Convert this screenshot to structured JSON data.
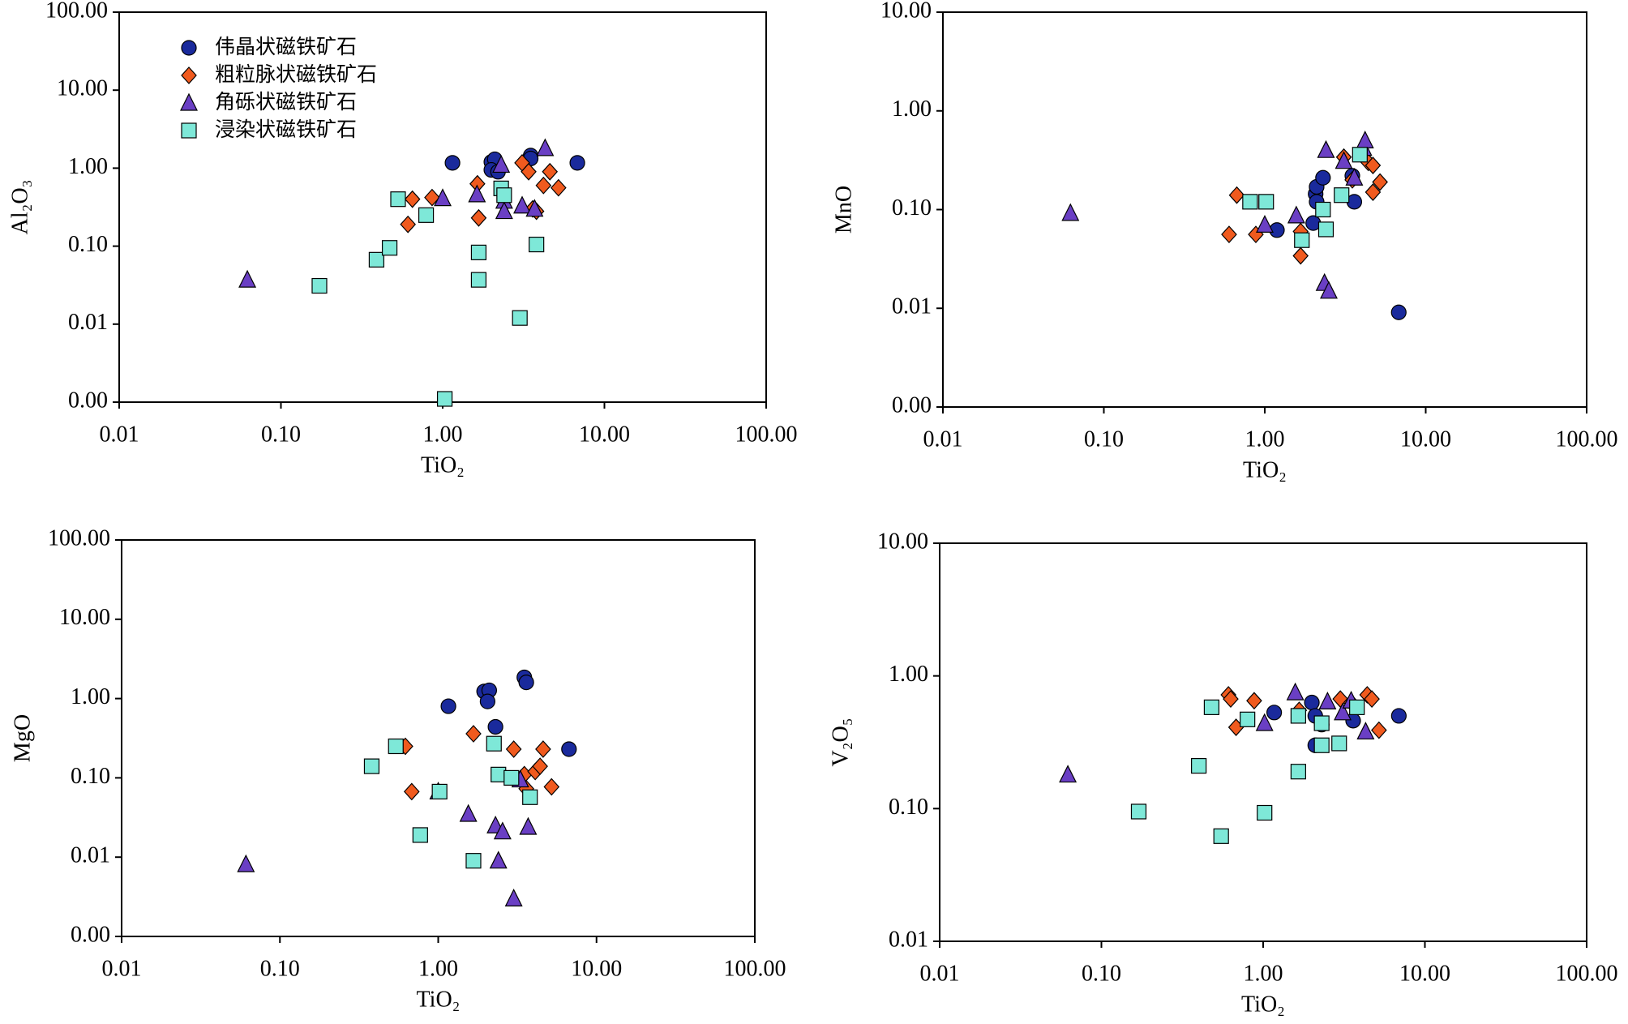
{
  "chart_data": [
    {
      "type": "scatter",
      "xlabel": "TiO₂",
      "ylabel": "Al₂O₃",
      "log_x": true,
      "log_y": true,
      "legend": "upper left",
      "xlim": [
        0.01,
        100
      ],
      "xticks": [
        0.01,
        {
          "value": 0.1,
          "label": "0.10"
        },
        {
          "value": 1,
          "label": "1.00"
        },
        {
          "value": 10,
          "label": "10.00"
        },
        {
          "value": 100,
          "label": "100.00"
        }
      ],
      "ylim": [
        0.001,
        100
      ],
      "yticks": [
        {
          "value": 0.001,
          "label": "0.00"
        },
        0.01,
        {
          "value": 0.1,
          "label": "0.10"
        },
        {
          "value": 1,
          "label": "1.00"
        },
        {
          "value": 10,
          "label": "10.00"
        },
        {
          "value": 100,
          "label": "100.00"
        }
      ],
      "series": [
        {
          "name": "伟晶状磁铁矿石",
          "marker": "circle",
          "color": "#1a2a9c",
          "x": [
            1.15,
            2.0,
            2.1,
            2.0,
            2.2,
            3.5,
            3.5,
            6.8
          ],
          "values": [
            1.17,
            1.2,
            1.3,
            0.95,
            0.9,
            1.45,
            1.33,
            1.17
          ]
        },
        {
          "name": "粗粒脉状磁铁矿石",
          "marker": "diamond",
          "color": "#f05a1e",
          "x": [
            0.61,
            0.65,
            0.86,
            1.64,
            1.67,
            3.1,
            3.4,
            3.6,
            4.2,
            4.6,
            5.2,
            3.8
          ],
          "values": [
            0.19,
            0.4,
            0.42,
            0.63,
            0.23,
            1.17,
            0.9,
            0.3,
            0.6,
            0.9,
            0.56,
            0.28
          ]
        },
        {
          "name": "角砾状磁铁矿石",
          "marker": "triangle",
          "color": "#6a3fc4",
          "x": [
            0.062,
            1.0,
            1.63,
            2.3,
            2.4,
            2.4,
            3.1,
            3.7,
            4.3
          ],
          "values": [
            0.037,
            0.41,
            0.46,
            1.1,
            0.38,
            0.28,
            0.33,
            0.3,
            1.8
          ]
        },
        {
          "name": "浸染状磁铁矿石",
          "marker": "square",
          "color": "#7ee8d8",
          "x": [
            0.173,
            0.39,
            0.47,
            0.53,
            0.79,
            1.03,
            1.67,
            1.67,
            2.3,
            2.4,
            3.0,
            3.8
          ],
          "values": [
            0.031,
            0.067,
            0.095,
            0.4,
            0.25,
            0.0011,
            0.083,
            0.037,
            0.55,
            0.45,
            0.012,
            0.105
          ]
        }
      ]
    },
    {
      "type": "scatter",
      "xlabel": "TiO₂",
      "ylabel": "MnO",
      "log_x": true,
      "log_y": true,
      "xlim": [
        0.01,
        100
      ],
      "xticks": [
        0.01,
        {
          "value": 0.1,
          "label": "0.10"
        },
        {
          "value": 1,
          "label": "1.00"
        },
        {
          "value": 10,
          "label": "10.00"
        },
        {
          "value": 100,
          "label": "100.00"
        }
      ],
      "ylim": [
        0.001,
        10
      ],
      "yticks": [
        {
          "value": 0.001,
          "label": "0.00"
        },
        0.01,
        {
          "value": 0.1,
          "label": "0.10"
        },
        {
          "value": 1,
          "label": "1.00"
        },
        {
          "value": 10,
          "label": "10.00"
        }
      ],
      "series": [
        {
          "marker": "circle",
          "color": "#1a2a9c",
          "x": [
            1.19,
            2.07,
            2.1,
            2.3,
            2.1,
            2.0,
            3.6,
            3.5,
            6.8
          ],
          "values": [
            0.062,
            0.144,
            0.17,
            0.21,
            0.12,
            0.073,
            0.12,
            0.22,
            0.0091
          ]
        },
        {
          "marker": "diamond",
          "color": "#f05a1e",
          "x": [
            0.6,
            0.67,
            0.88,
            1.67,
            1.67,
            3.1,
            3.5,
            4.4,
            4.7,
            4.7,
            5.2
          ],
          "values": [
            0.056,
            0.14,
            0.056,
            0.06,
            0.034,
            0.34,
            0.2,
            0.3,
            0.28,
            0.15,
            0.19
          ]
        },
        {
          "marker": "triangle",
          "color": "#6a3fc4",
          "x": [
            0.062,
            1.0,
            1.57,
            2.4,
            2.35,
            2.5,
            3.1,
            3.6,
            4.1,
            4.2
          ],
          "values": [
            0.092,
            0.07,
            0.087,
            0.4,
            0.018,
            0.015,
            0.31,
            0.21,
            0.42,
            0.5
          ]
        },
        {
          "marker": "square",
          "color": "#7ee8d8",
          "x": [
            0.81,
            1.02,
            1.7,
            2.3,
            2.4,
            3.0,
            3.9
          ],
          "values": [
            0.12,
            0.12,
            0.049,
            0.1,
            0.063,
            0.14,
            0.36
          ]
        }
      ]
    },
    {
      "type": "scatter",
      "xlabel": "TiO₂",
      "ylabel": "MgO",
      "log_x": true,
      "log_y": true,
      "xlim": [
        0.01,
        100
      ],
      "xticks": [
        0.01,
        {
          "value": 0.1,
          "label": "0.10"
        },
        {
          "value": 1,
          "label": "1.00"
        },
        {
          "value": 10,
          "label": "10.00"
        },
        {
          "value": 100,
          "label": "100.00"
        }
      ],
      "ylim": [
        0.001,
        100
      ],
      "yticks": [
        {
          "value": 0.001,
          "label": "0.00"
        },
        0.01,
        {
          "value": 0.1,
          "label": "0.10"
        },
        {
          "value": 1,
          "label": "1.00"
        },
        {
          "value": 10,
          "label": "10.00"
        },
        {
          "value": 100,
          "label": "100.00"
        }
      ],
      "series": [
        {
          "marker": "circle",
          "color": "#1a2a9c",
          "x": [
            1.16,
            1.95,
            2.1,
            2.05,
            2.3,
            3.5,
            3.6,
            6.7
          ],
          "values": [
            0.8,
            1.23,
            1.27,
            0.92,
            0.44,
            1.85,
            1.6,
            0.23
          ]
        },
        {
          "marker": "diamond",
          "color": "#f05a1e",
          "x": [
            0.62,
            0.68,
            1.67,
            3.0,
            3.5,
            3.6,
            4.1,
            4.4,
            4.6,
            5.2
          ],
          "values": [
            0.25,
            0.067,
            0.36,
            0.23,
            0.11,
            0.073,
            0.12,
            0.14,
            0.23,
            0.077
          ]
        },
        {
          "marker": "triangle",
          "color": "#6a3fc4",
          "x": [
            0.061,
            1.0,
            1.55,
            2.3,
            2.4,
            2.55,
            3.0,
            3.7,
            3.3
          ],
          "values": [
            0.0081,
            0.067,
            0.035,
            0.025,
            0.009,
            0.021,
            0.003,
            0.024,
            0.095
          ]
        },
        {
          "marker": "square",
          "color": "#7ee8d8",
          "x": [
            0.38,
            0.54,
            0.77,
            1.02,
            1.67,
            2.25,
            2.4,
            2.9,
            3.8
          ],
          "values": [
            0.14,
            0.25,
            0.019,
            0.067,
            0.009,
            0.27,
            0.11,
            0.1,
            0.057
          ]
        }
      ]
    },
    {
      "type": "scatter",
      "xlabel": "TiO₂",
      "ylabel": "V₂O₅",
      "log_x": true,
      "log_y": true,
      "xlim": [
        0.01,
        100
      ],
      "xticks": [
        0.01,
        {
          "value": 0.1,
          "label": "0.10"
        },
        {
          "value": 1,
          "label": "1.00"
        },
        {
          "value": 10,
          "label": "10.00"
        },
        {
          "value": 100,
          "label": "100.00"
        }
      ],
      "ylim": [
        0.01,
        10
      ],
      "yticks": [
        0.01,
        {
          "value": 0.1,
          "label": "0.10"
        },
        {
          "value": 1,
          "label": "1.00"
        },
        {
          "value": 10,
          "label": "10.00"
        }
      ],
      "series": [
        {
          "marker": "circle",
          "color": "#1a2a9c",
          "x": [
            1.17,
            2.0,
            2.1,
            2.1,
            2.3,
            3.6,
            6.9
          ],
          "values": [
            0.53,
            0.63,
            0.5,
            0.3,
            0.43,
            0.46,
            0.5
          ]
        },
        {
          "marker": "diamond",
          "color": "#f05a1e",
          "x": [
            0.61,
            0.63,
            0.68,
            0.88,
            1.67,
            3.0,
            3.5,
            4.4,
            4.7,
            5.2
          ],
          "values": [
            0.72,
            0.67,
            0.41,
            0.65,
            0.55,
            0.67,
            0.63,
            0.72,
            0.67,
            0.39
          ]
        },
        {
          "marker": "triangle",
          "color": "#6a3fc4",
          "x": [
            0.062,
            1.02,
            1.58,
            2.5,
            3.1,
            4.3,
            3.5
          ],
          "values": [
            0.18,
            0.44,
            0.75,
            0.64,
            0.53,
            0.38,
            0.65
          ]
        },
        {
          "marker": "square",
          "color": "#7ee8d8",
          "x": [
            0.17,
            0.4,
            0.48,
            0.55,
            0.8,
            1.02,
            1.65,
            1.65,
            2.3,
            2.95,
            3.8,
            2.3
          ],
          "values": [
            0.095,
            0.21,
            0.58,
            0.062,
            0.47,
            0.093,
            0.5,
            0.19,
            0.3,
            0.31,
            0.58,
            0.44
          ]
        }
      ]
    }
  ]
}
